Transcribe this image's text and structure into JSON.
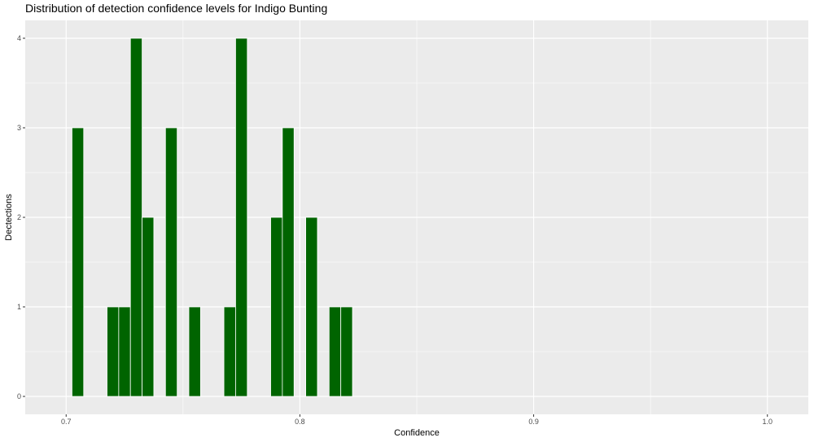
{
  "chart_data": {
    "type": "bar",
    "title": "Distribution of detection confidence levels for Indigo Bunting",
    "xlabel": "Confidence",
    "ylabel": "Dectections",
    "xlim": [
      0.6825,
      1.0175
    ],
    "ylim": [
      -0.2,
      4.2
    ],
    "x_ticks": [
      0.7,
      0.8,
      0.9,
      1.0
    ],
    "x_tick_labels": [
      "0.7",
      "0.8",
      "0.9",
      "1.0"
    ],
    "y_ticks": [
      0,
      1,
      2,
      3,
      4
    ],
    "y_tick_labels": [
      "0",
      "1",
      "2",
      "3",
      "4"
    ],
    "bin_width": 0.005,
    "bins": [
      {
        "x": 0.705,
        "count": 3
      },
      {
        "x": 0.72,
        "count": 1
      },
      {
        "x": 0.725,
        "count": 1
      },
      {
        "x": 0.73,
        "count": 4
      },
      {
        "x": 0.735,
        "count": 2
      },
      {
        "x": 0.745,
        "count": 3
      },
      {
        "x": 0.755,
        "count": 1
      },
      {
        "x": 0.77,
        "count": 1
      },
      {
        "x": 0.775,
        "count": 4
      },
      {
        "x": 0.79,
        "count": 2
      },
      {
        "x": 0.795,
        "count": 3
      },
      {
        "x": 0.805,
        "count": 2
      },
      {
        "x": 0.815,
        "count": 1
      },
      {
        "x": 0.82,
        "count": 1
      }
    ],
    "bar_color": "#006400",
    "bar_outline": "#ffffff",
    "panel_background": "#ebebeb",
    "grid_color": "#ffffff",
    "grid": true,
    "legend": "none"
  }
}
